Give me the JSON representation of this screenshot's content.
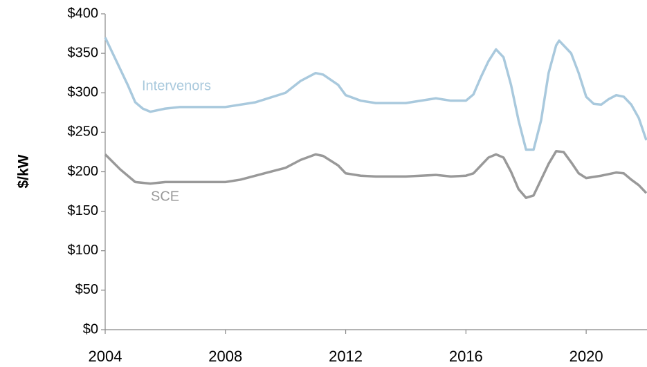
{
  "chart_data": {
    "type": "line",
    "ylabel": "$/kW",
    "xlim": [
      2004,
      2022
    ],
    "xticks": [
      2004,
      2008,
      2012,
      2016,
      2020
    ],
    "ylim": [
      0,
      400
    ],
    "yticks": [
      {
        "value": 0,
        "label": "$0"
      },
      {
        "value": 50,
        "label": "$50"
      },
      {
        "value": 100,
        "label": "$100"
      },
      {
        "value": 150,
        "label": "$150"
      },
      {
        "value": 200,
        "label": "$200"
      },
      {
        "value": 250,
        "label": "$250"
      },
      {
        "value": 300,
        "label": "$300"
      },
      {
        "value": 350,
        "label": "$350"
      },
      {
        "value": 400,
        "label": "$400"
      }
    ],
    "grid": false,
    "series": [
      {
        "name": "Intervenors",
        "color": "#a9c9dd",
        "x": [
          2004,
          2004.25,
          2004.5,
          2004.75,
          2005,
          2005.25,
          2005.5,
          2006,
          2006.5,
          2008,
          2009,
          2010,
          2010.5,
          2011,
          2011.25,
          2011.75,
          2012,
          2012.5,
          2013,
          2014,
          2015,
          2015.5,
          2016,
          2016.25,
          2016.5,
          2016.75,
          2017,
          2017.25,
          2017.5,
          2017.75,
          2018,
          2018.25,
          2018.5,
          2018.75,
          2019,
          2019.1,
          2019.5,
          2019.75,
          2020,
          2020.25,
          2020.5,
          2020.75,
          2021,
          2021.25,
          2021.5,
          2021.75,
          2022
        ],
        "values": [
          370,
          350,
          330,
          310,
          288,
          280,
          276,
          280,
          282,
          282,
          288,
          300,
          315,
          325,
          323,
          310,
          297,
          290,
          287,
          287,
          293,
          290,
          290,
          298,
          320,
          340,
          355,
          345,
          310,
          265,
          228,
          228,
          265,
          325,
          360,
          366,
          350,
          325,
          295,
          286,
          285,
          292,
          297,
          295,
          285,
          268,
          240
        ]
      },
      {
        "name": "SCE",
        "color": "#999999",
        "x": [
          2004,
          2004.5,
          2005,
          2005.5,
          2006,
          2008,
          2008.5,
          2009,
          2010,
          2010.5,
          2011,
          2011.25,
          2011.75,
          2012,
          2012.5,
          2013,
          2014,
          2015,
          2015.5,
          2016,
          2016.25,
          2016.5,
          2016.75,
          2017,
          2017.25,
          2017.5,
          2017.75,
          2018,
          2018.25,
          2018.5,
          2018.75,
          2019,
          2019.25,
          2019.5,
          2019.75,
          2020,
          2020.5,
          2021,
          2021.25,
          2021.5,
          2021.75,
          2022
        ],
        "values": [
          222,
          203,
          187,
          185,
          187,
          187,
          190,
          195,
          205,
          215,
          222,
          220,
          208,
          198,
          195,
          194,
          194,
          196,
          194,
          195,
          198,
          208,
          218,
          222,
          218,
          200,
          178,
          167,
          170,
          190,
          210,
          226,
          225,
          212,
          198,
          192,
          195,
          199,
          198,
          190,
          183,
          173
        ]
      }
    ]
  }
}
